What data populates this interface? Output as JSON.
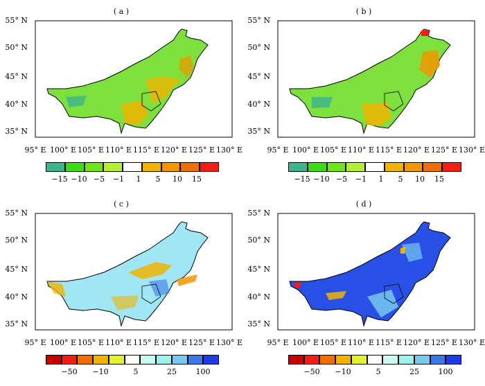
{
  "panels": [
    {
      "title": "( a )"
    },
    {
      "title": "( b )"
    },
    {
      "title": "( c )"
    },
    {
      "title": "( d )"
    }
  ],
  "lat_labels": [
    "55° N",
    "50° N",
    "45° N",
    "40° N",
    "35° N"
  ],
  "lon_labels": [
    "95° E",
    "100° E",
    "105° E",
    "110° E",
    "115° E",
    "120° E",
    "125° E",
    "130° E"
  ],
  "colorbar_top": {
    "colors": [
      "#3cb48c",
      "#3cdc14",
      "#6ee614",
      "#b4f032",
      "#ffffff",
      "#f0b400",
      "#f09600",
      "#f06e00",
      "#f01e14"
    ],
    "ticks": [
      "-15",
      "-10",
      "-5",
      "-1",
      "1",
      "5",
      "10",
      "15"
    ]
  },
  "colorbar_bottom": {
    "colors": [
      "#c80000",
      "#f01e14",
      "#f06e00",
      "#f0b400",
      "#e6f032",
      "#ffffff",
      "#c8fff0",
      "#a0f0f0",
      "#78c8f0",
      "#3c78e6",
      "#1e3ce6"
    ],
    "ticks": [
      "-50",
      "-10",
      "5",
      "25",
      "100"
    ]
  }
}
